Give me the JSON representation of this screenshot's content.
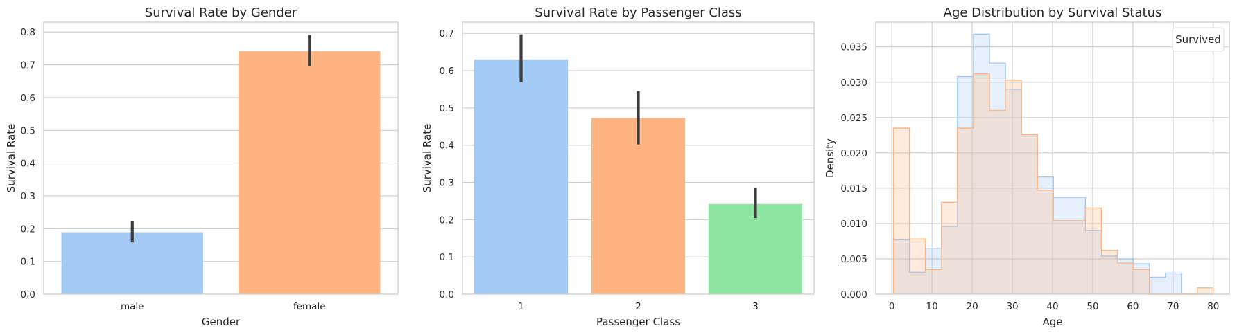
{
  "chart_data": [
    {
      "type": "bar",
      "title": "Survival Rate by Gender",
      "xlabel": "Gender",
      "ylabel": "Survival Rate",
      "categories": [
        "male",
        "female"
      ],
      "values": [
        0.189,
        0.742
      ],
      "error_low": [
        0.158,
        0.695
      ],
      "error_high": [
        0.222,
        0.792
      ],
      "colors": [
        "#a1c9f4",
        "#ffb482"
      ],
      "ylim": [
        0,
        0.83
      ],
      "yticks": [
        "0.0",
        "0.1",
        "0.2",
        "0.3",
        "0.4",
        "0.5",
        "0.6",
        "0.7",
        "0.8"
      ],
      "grid": true
    },
    {
      "type": "bar",
      "title": "Survival Rate by Passenger Class",
      "xlabel": "Passenger Class",
      "ylabel": "Survival Rate",
      "categories": [
        "1",
        "2",
        "3"
      ],
      "values": [
        0.63,
        0.473,
        0.242
      ],
      "error_low": [
        0.569,
        0.402,
        0.204
      ],
      "error_high": [
        0.697,
        0.545,
        0.285
      ],
      "colors": [
        "#a1c9f4",
        "#ffb482",
        "#8de5a1"
      ],
      "ylim": [
        0,
        0.73
      ],
      "yticks": [
        "0.0",
        "0.1",
        "0.2",
        "0.3",
        "0.4",
        "0.5",
        "0.6",
        "0.7"
      ],
      "grid": true
    },
    {
      "type": "area",
      "subtype": "step-histogram",
      "title": "Age Distribution by Survival Status",
      "xlabel": "Age",
      "ylabel": "Density",
      "legend_title": "Survived",
      "legend_position": "top-right",
      "bin_edges": [
        0.42,
        4.4,
        8.38,
        12.36,
        16.34,
        20.32,
        24.3,
        28.28,
        32.26,
        36.24,
        40.22,
        44.2,
        48.18,
        52.16,
        56.14,
        60.12,
        64.1,
        68.08,
        72.06,
        76.04,
        80.0
      ],
      "series": [
        {
          "color": "#a1c9f4",
          "values": [
            0.0077,
            0.0031,
            0.0065,
            0.0096,
            0.0308,
            0.0368,
            0.0327,
            0.029,
            0.0226,
            0.0166,
            0.0137,
            0.0137,
            0.009,
            0.0054,
            0.005,
            0.0043,
            0.0024,
            0.003,
            0.0,
            0.0
          ]
        },
        {
          "color": "#ffb482",
          "values": [
            0.0235,
            0.0078,
            0.0035,
            0.013,
            0.0235,
            0.0312,
            0.026,
            0.0303,
            0.0226,
            0.0147,
            0.0104,
            0.0104,
            0.0122,
            0.0062,
            0.0044,
            0.0035,
            0.0,
            0.0,
            0.0,
            0.0009
          ]
        }
      ],
      "xlim": [
        -4,
        84
      ],
      "xticks": [
        0,
        10,
        20,
        30,
        40,
        50,
        60,
        70,
        80
      ],
      "ylim": [
        0,
        0.0385
      ],
      "yticks": [
        "0.000",
        "0.005",
        "0.010",
        "0.015",
        "0.020",
        "0.025",
        "0.030",
        "0.035"
      ],
      "grid": true
    }
  ]
}
